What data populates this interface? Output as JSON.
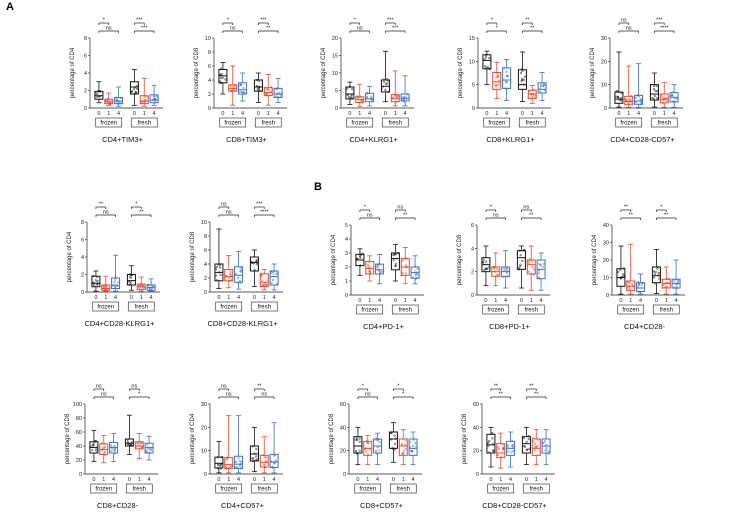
{
  "panel_labels": [
    "A",
    "B"
  ],
  "colors": {
    "t0": "#111111",
    "t1": "#e8472b",
    "t4": "#3b6fd1"
  },
  "chart_data": [
    {
      "type": "box",
      "title": "CD4+TIM3+",
      "ylabel": "percentage of CD4",
      "ylim": [
        0,
        8
      ],
      "yticks": [
        "0",
        "2",
        "4",
        "6",
        "8"
      ],
      "groups": [
        "frozen",
        "fresh"
      ],
      "timepoints": [
        "0",
        "1",
        "4"
      ],
      "boxes": [
        [
          0.6,
          1.0,
          1.4,
          1.9,
          3.0
        ],
        [
          0.3,
          0.5,
          0.7,
          1.0,
          1.7
        ],
        [
          0.2,
          0.5,
          0.8,
          1.2,
          2.4
        ],
        [
          0.3,
          1.6,
          2.4,
          3.0,
          4.4
        ],
        [
          0.2,
          0.5,
          0.8,
          1.4,
          3.4
        ],
        [
          0.3,
          0.6,
          0.9,
          1.5,
          2.6
        ]
      ],
      "brackets": [
        {
          "from": 0,
          "to": 1,
          "label": "*"
        },
        {
          "from": 0,
          "to": 2,
          "label": "ns"
        },
        {
          "from": 3,
          "to": 4,
          "label": "***"
        },
        {
          "from": 3,
          "to": 5,
          "label": "***"
        }
      ]
    },
    {
      "type": "box",
      "title": "CD8+TIM3+",
      "ylabel": "percentage of CD8",
      "ylim": [
        0,
        10
      ],
      "yticks": [
        "0",
        "2",
        "4",
        "6",
        "8",
        "10"
      ],
      "groups": [
        "frozen",
        "fresh"
      ],
      "timepoints": [
        "0",
        "1",
        "4"
      ],
      "boxes": [
        [
          2.0,
          3.6,
          4.6,
          5.5,
          6.5
        ],
        [
          0.4,
          2.4,
          2.8,
          3.3,
          6.0
        ],
        [
          1.0,
          2.0,
          2.6,
          3.6,
          5.0
        ],
        [
          0.8,
          2.4,
          3.0,
          4.0,
          5.0
        ],
        [
          0.4,
          1.8,
          2.2,
          2.9,
          4.8
        ],
        [
          0.8,
          1.5,
          2.0,
          2.8,
          4.2
        ]
      ],
      "brackets": [
        {
          "from": 0,
          "to": 1,
          "label": "*"
        },
        {
          "from": 0,
          "to": 2,
          "label": "ns"
        },
        {
          "from": 3,
          "to": 4,
          "label": "***"
        },
        {
          "from": 3,
          "to": 5,
          "label": "**"
        }
      ]
    },
    {
      "type": "box",
      "title": "CD4+KLRG1+",
      "ylabel": "percentage of CD4",
      "ylim": [
        0,
        20
      ],
      "yticks": [
        "0",
        "5",
        "10",
        "15",
        "20"
      ],
      "groups": [
        "frozen",
        "fresh"
      ],
      "timepoints": [
        "0",
        "1",
        "4"
      ],
      "boxes": [
        [
          1.0,
          2.6,
          4.0,
          6.0,
          7.4
        ],
        [
          0.5,
          1.6,
          2.4,
          3.2,
          6.8
        ],
        [
          0.6,
          1.8,
          2.6,
          4.2,
          6.2
        ],
        [
          1.8,
          4.6,
          6.2,
          8.0,
          16.2
        ],
        [
          0.6,
          1.8,
          2.6,
          3.8,
          10.6
        ],
        [
          0.6,
          2.0,
          2.8,
          4.0,
          9.2
        ]
      ],
      "brackets": [
        {
          "from": 0,
          "to": 1,
          "label": "*"
        },
        {
          "from": 0,
          "to": 2,
          "label": "ns"
        },
        {
          "from": 3,
          "to": 4,
          "label": "***"
        },
        {
          "from": 3,
          "to": 5,
          "label": "***"
        }
      ]
    },
    {
      "type": "box",
      "title": "CD8+KLRG1+",
      "ylabel": "percentage of CD8",
      "ylim": [
        0,
        15
      ],
      "yticks": [
        "0",
        "5",
        "10",
        "15"
      ],
      "groups": [
        "frozen",
        "fresh"
      ],
      "timepoints": [
        "0",
        "1",
        "4"
      ],
      "boxes": [
        [
          5.0,
          8.4,
          10.2,
          11.4,
          12.2
        ],
        [
          2.0,
          4.0,
          5.6,
          7.6,
          9.8
        ],
        [
          1.6,
          4.2,
          6.0,
          8.6,
          10.4
        ],
        [
          1.4,
          4.0,
          5.0,
          8.2,
          12.0
        ],
        [
          1.0,
          2.0,
          3.0,
          3.8,
          4.8
        ],
        [
          1.6,
          3.2,
          4.0,
          5.4,
          7.6
        ]
      ],
      "brackets": [
        {
          "from": 0,
          "to": 1,
          "label": "*"
        },
        {
          "from": 0,
          "to": 2,
          "label": "*"
        },
        {
          "from": 3,
          "to": 4,
          "label": "**"
        },
        {
          "from": 3,
          "to": 5,
          "label": "**"
        }
      ]
    },
    {
      "type": "box",
      "title": "CD4+CD28-CD57+",
      "ylabel": "percentage of CD4",
      "ylim": [
        0,
        30
      ],
      "yticks": [
        "0",
        "10",
        "20",
        "30"
      ],
      "groups": [
        "frozen",
        "fresh"
      ],
      "timepoints": [
        "0",
        "1",
        "4"
      ],
      "boxes": [
        [
          0.4,
          2.0,
          3.8,
          6.8,
          24.0
        ],
        [
          0.3,
          1.4,
          2.8,
          5.0,
          18.0
        ],
        [
          0.3,
          1.6,
          3.0,
          5.4,
          19.0
        ],
        [
          0.4,
          3.4,
          6.0,
          10.0,
          15.0
        ],
        [
          0.3,
          2.2,
          3.8,
          6.0,
          11.0
        ],
        [
          0.3,
          2.6,
          4.6,
          6.6,
          10.0
        ]
      ],
      "brackets": [
        {
          "from": 0,
          "to": 1,
          "label": "ns"
        },
        {
          "from": 0,
          "to": 2,
          "label": "ns"
        },
        {
          "from": 3,
          "to": 4,
          "label": "***"
        },
        {
          "from": 3,
          "to": 5,
          "label": "****"
        }
      ]
    },
    {
      "type": "box",
      "title": "CD4+CD28-KLRG1+",
      "ylabel": "percentage of CD4",
      "ylim": [
        0,
        8
      ],
      "yticks": [
        "0",
        "2",
        "4",
        "6",
        "8"
      ],
      "groups": [
        "frozen",
        "fresh"
      ],
      "timepoints": [
        "0",
        "1",
        "4"
      ],
      "boxes": [
        [
          0.1,
          0.6,
          1.0,
          1.8,
          2.4
        ],
        [
          0.1,
          0.2,
          0.4,
          0.8,
          1.8
        ],
        [
          0.1,
          0.4,
          0.7,
          1.6,
          4.2
        ],
        [
          0.2,
          0.8,
          1.3,
          2.0,
          3.0
        ],
        [
          0.1,
          0.3,
          0.6,
          0.9,
          1.7
        ],
        [
          0.1,
          0.2,
          0.5,
          0.8,
          1.5
        ]
      ],
      "brackets": [
        {
          "from": 0,
          "to": 1,
          "label": "**"
        },
        {
          "from": 0,
          "to": 2,
          "label": "ns"
        },
        {
          "from": 3,
          "to": 4,
          "label": "*"
        },
        {
          "from": 3,
          "to": 5,
          "label": "**"
        }
      ]
    },
    {
      "type": "box",
      "title": "CD8+CD28-KLRG1+",
      "ylabel": "percentage of CD8",
      "ylim": [
        0,
        10
      ],
      "yticks": [
        "0",
        "2",
        "4",
        "6",
        "8",
        "10"
      ],
      "groups": [
        "frozen",
        "fresh"
      ],
      "timepoints": [
        "0",
        "1",
        "4"
      ],
      "boxes": [
        [
          0.5,
          1.6,
          2.8,
          4.0,
          9.0
        ],
        [
          0.6,
          1.6,
          2.2,
          3.2,
          5.2
        ],
        [
          0.4,
          1.4,
          2.4,
          3.6,
          5.8
        ],
        [
          0.8,
          3.0,
          4.2,
          5.0,
          6.0
        ],
        [
          0.3,
          0.8,
          1.4,
          2.6,
          3.2
        ],
        [
          0.3,
          1.0,
          2.2,
          3.0,
          4.0
        ]
      ],
      "brackets": [
        {
          "from": 0,
          "to": 1,
          "label": "ns"
        },
        {
          "from": 0,
          "to": 2,
          "label": "ns"
        },
        {
          "from": 3,
          "to": 4,
          "label": "***"
        },
        {
          "from": 3,
          "to": 5,
          "label": "****"
        }
      ]
    },
    {
      "type": "box",
      "title": "CD4+PD-1+",
      "ylabel": "percentage of CD4",
      "ylim": [
        0,
        5
      ],
      "yticks": [
        "0",
        "1",
        "2",
        "3",
        "4",
        "5"
      ],
      "groups": [
        "frozen",
        "fresh"
      ],
      "timepoints": [
        "0",
        "1",
        "4"
      ],
      "boxes": [
        [
          1.4,
          2.1,
          2.5,
          2.9,
          3.3
        ],
        [
          1.0,
          1.5,
          1.9,
          2.4,
          2.8
        ],
        [
          0.8,
          1.5,
          1.8,
          2.2,
          2.9
        ],
        [
          1.0,
          1.8,
          2.6,
          3.0,
          3.6
        ],
        [
          0.8,
          1.4,
          2.0,
          2.6,
          3.4
        ],
        [
          0.8,
          1.2,
          1.6,
          2.0,
          2.8
        ]
      ],
      "brackets": [
        {
          "from": 0,
          "to": 1,
          "label": "*"
        },
        {
          "from": 0,
          "to": 2,
          "label": "ns"
        },
        {
          "from": 3,
          "to": 4,
          "label": "ns"
        },
        {
          "from": 3,
          "to": 5,
          "label": "**"
        }
      ]
    },
    {
      "type": "box",
      "title": "CD8+PD-1+",
      "ylabel": "percentage of CD8",
      "ylim": [
        0,
        6
      ],
      "yticks": [
        "0",
        "2",
        "4",
        "6"
      ],
      "groups": [
        "frozen",
        "fresh"
      ],
      "timepoints": [
        "0",
        "1",
        "4"
      ],
      "boxes": [
        [
          0.8,
          2.0,
          2.6,
          3.2,
          4.2
        ],
        [
          0.8,
          1.6,
          2.0,
          2.4,
          3.6
        ],
        [
          0.6,
          1.6,
          2.0,
          2.4,
          3.8
        ],
        [
          0.6,
          2.2,
          3.2,
          3.8,
          4.2
        ],
        [
          0.4,
          1.8,
          2.6,
          3.0,
          4.2
        ],
        [
          0.4,
          1.4,
          2.2,
          3.0,
          3.6
        ]
      ],
      "brackets": [
        {
          "from": 0,
          "to": 1,
          "label": "*"
        },
        {
          "from": 0,
          "to": 2,
          "label": "ns"
        },
        {
          "from": 3,
          "to": 4,
          "label": "ns"
        },
        {
          "from": 3,
          "to": 5,
          "label": "**"
        }
      ]
    },
    {
      "type": "box",
      "title": "CD4+CD28-",
      "ylabel": "percentage of CD4",
      "ylim": [
        0,
        40
      ],
      "yticks": [
        "0",
        "10",
        "20",
        "30",
        "40"
      ],
      "groups": [
        "frozen",
        "fresh"
      ],
      "timepoints": [
        "0",
        "1",
        "4"
      ],
      "boxes": [
        [
          0.5,
          5.0,
          10.0,
          15.0,
          28.0
        ],
        [
          0.5,
          2.5,
          5.0,
          8.0,
          29.0
        ],
        [
          0.5,
          2.0,
          4.0,
          7.0,
          12.0
        ],
        [
          0.8,
          7.0,
          11.0,
          16.0,
          26.0
        ],
        [
          0.5,
          4.0,
          6.5,
          9.0,
          16.0
        ],
        [
          0.5,
          4.0,
          6.5,
          9.0,
          20.0
        ]
      ],
      "brackets": [
        {
          "from": 0,
          "to": 1,
          "label": "**"
        },
        {
          "from": 0,
          "to": 2,
          "label": "**"
        },
        {
          "from": 3,
          "to": 4,
          "label": "*"
        },
        {
          "from": 3,
          "to": 5,
          "label": "**"
        }
      ]
    },
    {
      "type": "box",
      "title": "CD8+CD28-",
      "ylabel": "percentage of CD8",
      "ylim": [
        0,
        100
      ],
      "yticks": [
        "0",
        "20",
        "40",
        "60",
        "80",
        "100"
      ],
      "groups": [
        "frozen",
        "fresh"
      ],
      "timepoints": [
        "0",
        "1",
        "4"
      ],
      "boxes": [
        [
          18,
          30,
          38,
          46,
          62
        ],
        [
          16,
          28,
          35,
          43,
          55
        ],
        [
          18,
          30,
          38,
          45,
          58
        ],
        [
          28,
          40,
          44,
          50,
          84
        ],
        [
          22,
          36,
          40,
          46,
          58
        ],
        [
          20,
          30,
          38,
          44,
          54
        ]
      ],
      "brackets": [
        {
          "from": 0,
          "to": 1,
          "label": "ns"
        },
        {
          "from": 0,
          "to": 2,
          "label": "ns"
        },
        {
          "from": 3,
          "to": 4,
          "label": "ns"
        },
        {
          "from": 3,
          "to": 5,
          "label": "*"
        }
      ]
    },
    {
      "type": "box",
      "title": "CD4+CD57+",
      "ylabel": "percentage of CD4",
      "ylim": [
        0,
        30
      ],
      "yticks": [
        "0",
        "10",
        "20",
        "30"
      ],
      "groups": [
        "frozen",
        "fresh"
      ],
      "timepoints": [
        "0",
        "1",
        "4"
      ],
      "boxes": [
        [
          0.5,
          2.6,
          4.6,
          7.2,
          14.0
        ],
        [
          0.5,
          2.4,
          4.0,
          7.0,
          25.0
        ],
        [
          0.5,
          2.4,
          4.2,
          7.6,
          25.0
        ],
        [
          1.0,
          5.6,
          8.6,
          12.0,
          20.0
        ],
        [
          0.5,
          3.0,
          5.0,
          8.0,
          16.0
        ],
        [
          0.5,
          2.8,
          5.2,
          8.4,
          22.0
        ]
      ],
      "brackets": [
        {
          "from": 0,
          "to": 1,
          "label": "ns"
        },
        {
          "from": 0,
          "to": 2,
          "label": "ns"
        },
        {
          "from": 3,
          "to": 4,
          "label": "**"
        },
        {
          "from": 3,
          "to": 5,
          "label": "ns"
        }
      ]
    },
    {
      "type": "box",
      "title": "CD8+CD57+",
      "ylabel": "percentage of CD8",
      "ylim": [
        0,
        60
      ],
      "yticks": [
        "0",
        "20",
        "40",
        "60"
      ],
      "groups": [
        "frozen",
        "fresh"
      ],
      "timepoints": [
        "0",
        "1",
        "4"
      ],
      "boxes": [
        [
          8,
          18,
          24,
          32,
          40
        ],
        [
          8,
          16,
          22,
          28,
          33
        ],
        [
          8,
          18,
          24,
          30,
          35
        ],
        [
          10,
          22,
          30,
          36,
          44
        ],
        [
          8,
          16,
          24,
          30,
          38
        ],
        [
          8,
          16,
          22,
          30,
          36
        ]
      ],
      "brackets": [
        {
          "from": 0,
          "to": 1,
          "label": "*"
        },
        {
          "from": 0,
          "to": 2,
          "label": "ns"
        },
        {
          "from": 3,
          "to": 4,
          "label": "*"
        },
        {
          "from": 3,
          "to": 5,
          "label": "*"
        }
      ]
    },
    {
      "type": "box",
      "title": "CD8+CD28-CD57+",
      "ylabel": "percentage of CD8",
      "ylim": [
        0,
        60
      ],
      "yticks": [
        "0",
        "20",
        "40",
        "60"
      ],
      "groups": [
        "frozen",
        "fresh"
      ],
      "timepoints": [
        "0",
        "1",
        "4"
      ],
      "boxes": [
        [
          6,
          18,
          25,
          34,
          40
        ],
        [
          5,
          14,
          18,
          26,
          35
        ],
        [
          6,
          16,
          22,
          28,
          36
        ],
        [
          8,
          18,
          26,
          32,
          40
        ],
        [
          8,
          16,
          22,
          30,
          38
        ],
        [
          8,
          18,
          24,
          30,
          38
        ]
      ],
      "brackets": [
        {
          "from": 0,
          "to": 1,
          "label": "**"
        },
        {
          "from": 0,
          "to": 2,
          "label": "**"
        },
        {
          "from": 3,
          "to": 4,
          "label": "**"
        },
        {
          "from": 3,
          "to": 5,
          "label": "**"
        }
      ]
    }
  ]
}
